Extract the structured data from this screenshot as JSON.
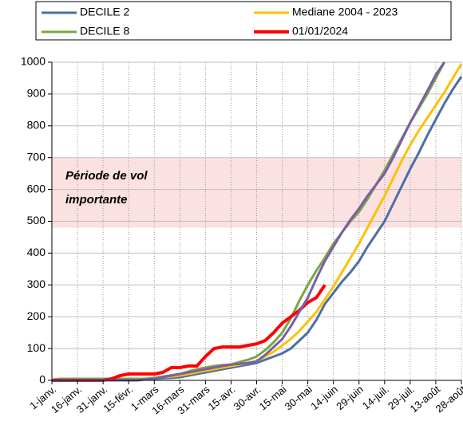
{
  "chart_data": {
    "type": "line",
    "categories": [
      "1-janv.",
      null,
      null,
      "16-janv.",
      null,
      null,
      "31-janv.",
      null,
      null,
      "15-févr.",
      null,
      null,
      "1-mars",
      null,
      null,
      "16-mars",
      null,
      null,
      "31-mars",
      null,
      null,
      "15-avr.",
      null,
      null,
      "30-avr.",
      null,
      null,
      "15-mai",
      null,
      null,
      "30-mai",
      null,
      null,
      "14-juin",
      null,
      null,
      "29-juin",
      null,
      null,
      "14-juil.",
      null,
      null,
      "29-juil.",
      null,
      null,
      "13-août",
      null,
      null,
      "28-août"
    ],
    "series": [
      {
        "name": "DECILE 2",
        "color": "#4a6fa5",
        "values": [
          2,
          5,
          5,
          5,
          5,
          5,
          5,
          5,
          5,
          5,
          5,
          5,
          5,
          7,
          8,
          10,
          15,
          20,
          25,
          30,
          35,
          40,
          45,
          50,
          55,
          65,
          75,
          85,
          100,
          125,
          150,
          190,
          240,
          275,
          310,
          340,
          375,
          420,
          460,
          500,
          555,
          610,
          665,
          715,
          770,
          820,
          870,
          915,
          955
        ]
      },
      {
        "name": "Mediane 2004 - 2023",
        "color": "#ffc000",
        "values": [
          0,
          0,
          0,
          0,
          0,
          0,
          0,
          0,
          0,
          0,
          2,
          5,
          8,
          10,
          12,
          15,
          20,
          25,
          30,
          35,
          40,
          45,
          50,
          55,
          60,
          75,
          90,
          110,
          130,
          155,
          185,
          215,
          255,
          295,
          340,
          385,
          430,
          480,
          530,
          580,
          635,
          690,
          740,
          785,
          825,
          865,
          905,
          950,
          995
        ]
      },
      {
        "name": "DECILE 8",
        "color": "#77a843",
        "values": [
          2,
          5,
          5,
          5,
          5,
          5,
          5,
          5,
          5,
          5,
          5,
          5,
          8,
          12,
          16,
          20,
          28,
          35,
          40,
          45,
          48,
          50,
          58,
          65,
          75,
          95,
          120,
          150,
          195,
          250,
          300,
          345,
          385,
          430,
          465,
          500,
          530,
          570,
          615,
          660,
          710,
          760,
          810,
          855,
          900,
          950,
          1000,
          null,
          null
        ]
      },
      {
        "name": "01/01/2024",
        "color": "#ff0000",
        "values": [
          0,
          0,
          0,
          0,
          0,
          0,
          0,
          5,
          15,
          20,
          20,
          20,
          20,
          25,
          40,
          40,
          45,
          45,
          75,
          100,
          105,
          105,
          105,
          110,
          115,
          125,
          150,
          180,
          200,
          220,
          245,
          260,
          300,
          null,
          null,
          null,
          null,
          null,
          null,
          null,
          null,
          null,
          null,
          null,
          null,
          null,
          null,
          null,
          null
        ]
      },
      {
        "color": "#7b5ea7",
        "values": [
          0,
          0,
          0,
          0,
          0,
          0,
          0,
          0,
          0,
          0,
          0,
          3,
          5,
          10,
          15,
          20,
          25,
          30,
          35,
          40,
          45,
          50,
          52,
          55,
          60,
          80,
          105,
          130,
          170,
          215,
          260,
          320,
          375,
          420,
          465,
          505,
          540,
          580,
          615,
          650,
          700,
          755,
          810,
          860,
          910,
          960,
          1000,
          null,
          null
        ]
      }
    ],
    "ylim": [
      0,
      1000
    ],
    "yticks": [
      0,
      100,
      200,
      300,
      400,
      500,
      600,
      700,
      800,
      900,
      1000
    ],
    "grid": true,
    "shaded_range": [
      480,
      700
    ],
    "annotation": [
      "Période de vol",
      "importante"
    ]
  }
}
